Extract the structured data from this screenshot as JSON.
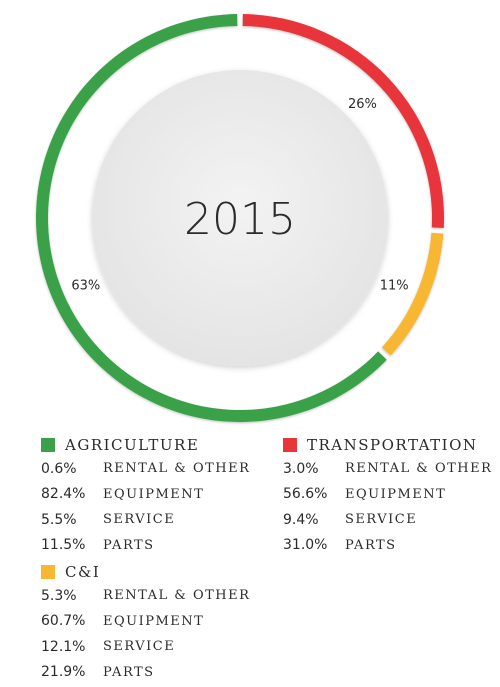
{
  "chart_data": {
    "type": "pie",
    "variant": "donut",
    "center_label": "2015",
    "start": "top",
    "direction": "clockwise",
    "slices": [
      {
        "label": "TRANSPORTATION",
        "value": 26,
        "display": "26%",
        "color": "#e8353a"
      },
      {
        "label": "C&I",
        "value": 11,
        "display": "11%",
        "color": "#f7b733"
      },
      {
        "label": "AGRICULTURE",
        "value": 63,
        "display": "63%",
        "color": "#3aa14a"
      }
    ],
    "inner_circle_color": "#ebebeb"
  },
  "legend": {
    "agriculture": {
      "title": "AGRICULTURE",
      "color": "#3aa14a",
      "rows": [
        {
          "value": "0.6%",
          "label": "RENTAL & OTHER"
        },
        {
          "value": "82.4%",
          "label": "EQUIPMENT"
        },
        {
          "value": "5.5%",
          "label": "SERVICE"
        },
        {
          "value": "11.5%",
          "label": "PARTS"
        }
      ]
    },
    "transportation": {
      "title": "TRANSPORTATION",
      "color": "#e8353a",
      "rows": [
        {
          "value": "3.0%",
          "label": "RENTAL & OTHER"
        },
        {
          "value": "56.6%",
          "label": "EQUIPMENT"
        },
        {
          "value": "9.4%",
          "label": "SERVICE"
        },
        {
          "value": "31.0%",
          "label": "PARTS"
        }
      ]
    },
    "ci": {
      "title": "C&I",
      "color": "#f7b733",
      "rows": [
        {
          "value": "5.3%",
          "label": "RENTAL & OTHER"
        },
        {
          "value": "60.7%",
          "label": "EQUIPMENT"
        },
        {
          "value": "12.1%",
          "label": "SERVICE"
        },
        {
          "value": "21.9%",
          "label": "PARTS"
        }
      ]
    }
  }
}
